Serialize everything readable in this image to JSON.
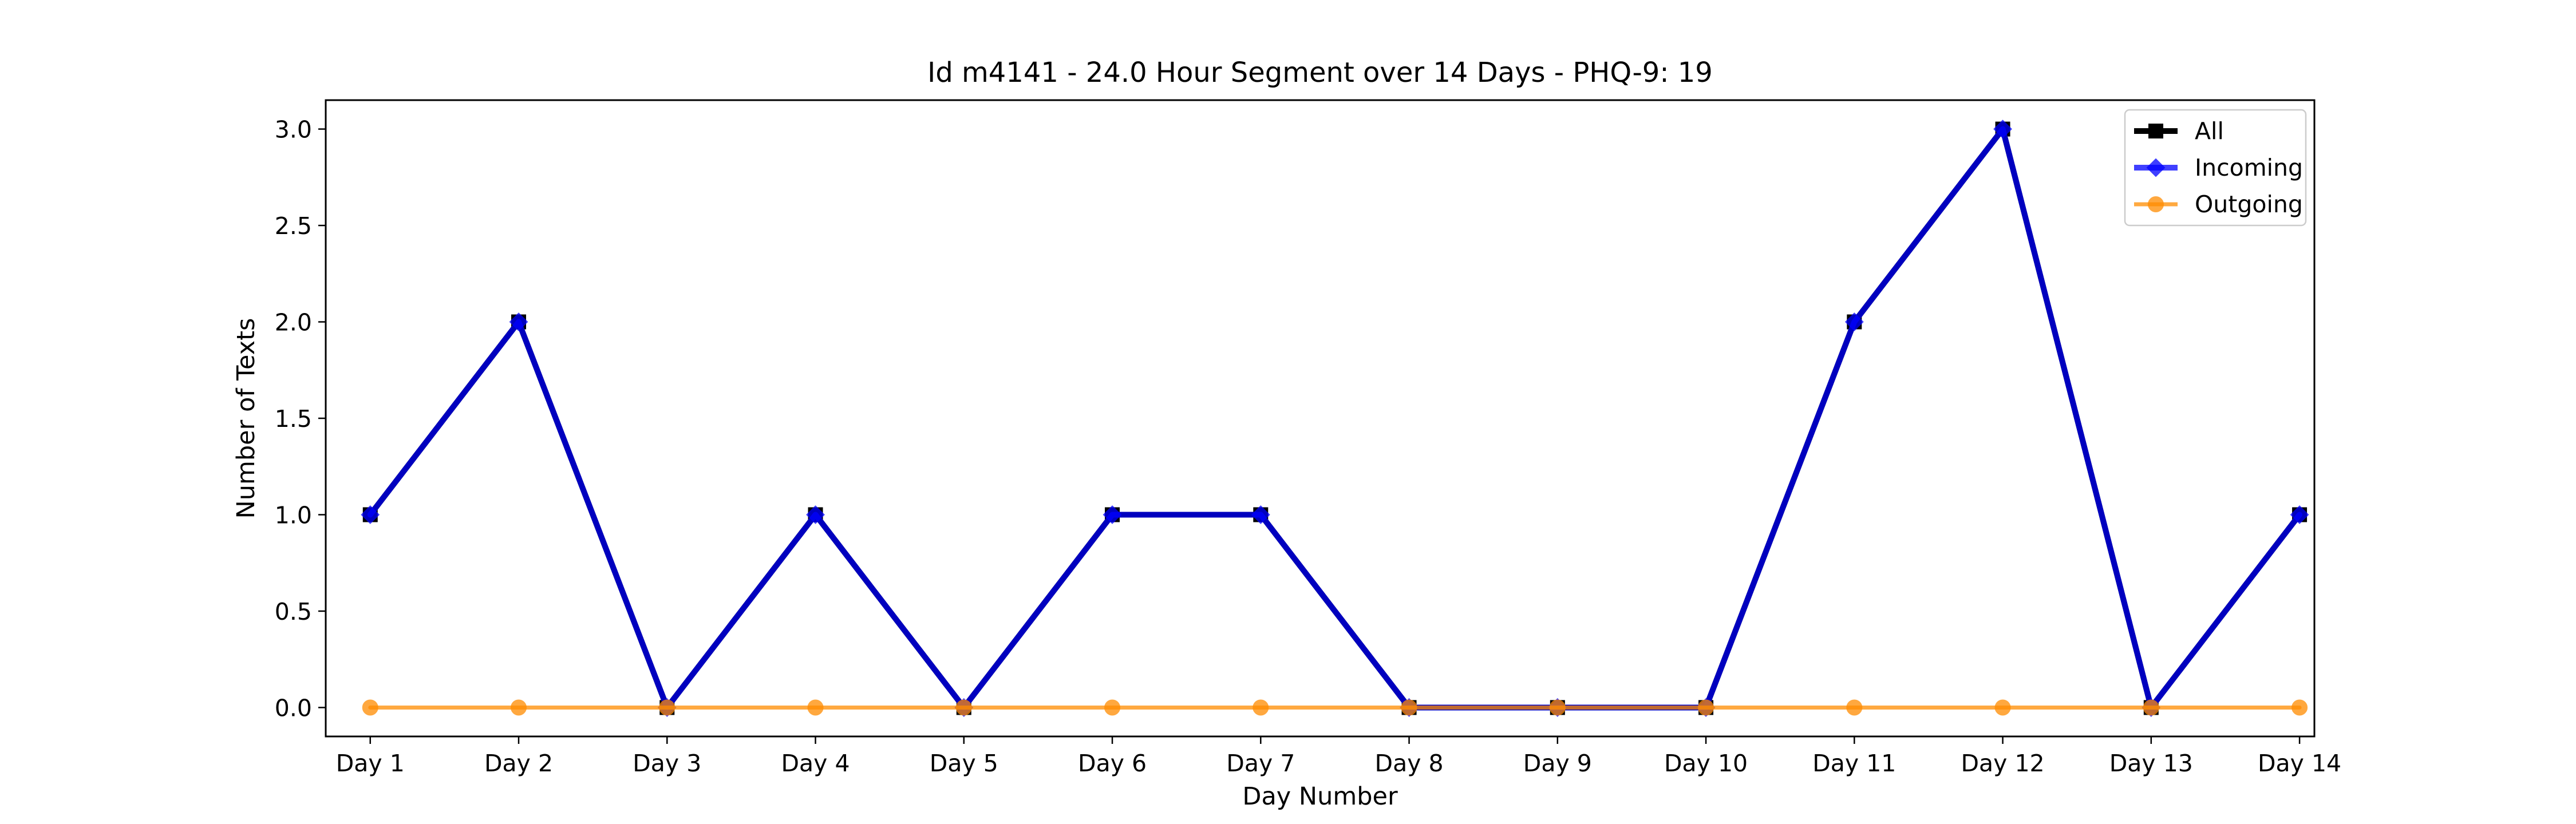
{
  "chart_data": {
    "type": "line",
    "title": "Id m4141 - 24.0 Hour Segment over 14 Days - PHQ-9: 19",
    "xlabel": "Day Number",
    "ylabel": "Number of Texts",
    "categories": [
      "Day 1",
      "Day 2",
      "Day 3",
      "Day 4",
      "Day 5",
      "Day 6",
      "Day 7",
      "Day 8",
      "Day 9",
      "Day 10",
      "Day 11",
      "Day 12",
      "Day 13",
      "Day 14"
    ],
    "ylim": [
      -0.15,
      3.15
    ],
    "yticks": [
      0.0,
      0.5,
      1.0,
      1.5,
      2.0,
      2.5,
      3.0
    ],
    "ytick_labels": [
      "0.0",
      "0.5",
      "1.0",
      "1.5",
      "2.0",
      "2.5",
      "3.0"
    ],
    "grid": false,
    "legend_position": "top-right",
    "series": [
      {
        "name": "All",
        "color": "#000000",
        "marker": "square",
        "values": [
          1,
          2,
          0,
          1,
          0,
          1,
          1,
          0,
          0,
          0,
          2,
          3,
          0,
          1
        ]
      },
      {
        "name": "Incoming",
        "color": "#0000ff",
        "marker": "diamond",
        "values": [
          1,
          2,
          0,
          1,
          0,
          1,
          1,
          0,
          0,
          0,
          2,
          3,
          0,
          1
        ]
      },
      {
        "name": "Outgoing",
        "color": "#ff8c00",
        "marker": "circle",
        "values": [
          0,
          0,
          0,
          0,
          0,
          0,
          0,
          0,
          0,
          0,
          0,
          0,
          0,
          0
        ]
      }
    ]
  }
}
